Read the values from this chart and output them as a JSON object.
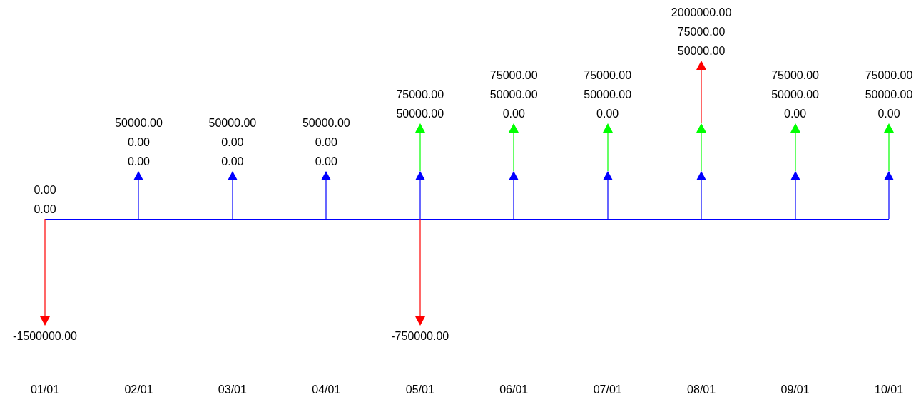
{
  "chart_data": {
    "type": "other",
    "categories": [
      "01/01",
      "02/01",
      "03/01",
      "04/01",
      "05/01",
      "06/01",
      "07/01",
      "08/01",
      "09/01",
      "10/01"
    ],
    "series": [
      {
        "color": "#0000ff",
        "values": [
          0,
          50000,
          50000,
          50000,
          50000,
          50000,
          50000,
          50000,
          50000,
          50000
        ],
        "value_labels": [
          "0.00",
          "50000.00",
          "50000.00",
          "50000.00",
          "50000.00",
          "50000.00",
          "50000.00",
          "50000.00",
          "50000.00",
          "50000.00"
        ]
      },
      {
        "color": "#00ff00",
        "values": [
          0,
          0,
          0,
          0,
          75000,
          75000,
          75000,
          75000,
          75000,
          75000
        ],
        "value_labels": [
          "0.00",
          "0.00",
          "0.00",
          "0.00",
          "75000.00",
          "75000.00",
          "75000.00",
          "75000.00",
          "75000.00",
          "75000.00"
        ]
      },
      {
        "color": "#ff0000",
        "values": [
          -1500000,
          0,
          0,
          0,
          -750000,
          0,
          0,
          2000000,
          0,
          0
        ],
        "value_labels": [
          "-1500000.00",
          "0.00",
          "0.00",
          "0.00",
          "-750000.00",
          "0.00",
          "0.00",
          "2000000.00",
          "0.00",
          "0.00"
        ]
      }
    ],
    "legend": false
  }
}
